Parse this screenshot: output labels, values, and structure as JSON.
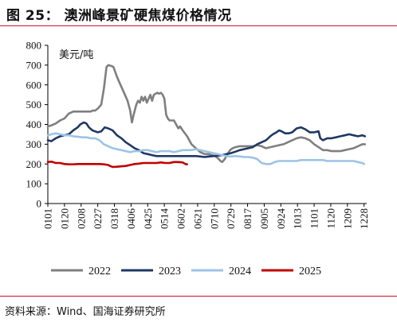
{
  "figure": {
    "title": "图 25：  澳洲峰景矿硬焦煤价格情况",
    "source": "资料来源：Wind、国海证券研究所"
  },
  "chart_data": {
    "type": "line",
    "unit_label": "美元/吨",
    "ylim": [
      0,
      800
    ],
    "yticks": [
      0,
      100,
      200,
      300,
      400,
      500,
      600,
      700,
      800
    ],
    "x_domain": [
      1,
      365
    ],
    "xticks": [
      {
        "label": "0101",
        "x": 1
      },
      {
        "label": "0120",
        "x": 20
      },
      {
        "label": "0208",
        "x": 39
      },
      {
        "label": "0227",
        "x": 58
      },
      {
        "label": "0318",
        "x": 77
      },
      {
        "label": "0406",
        "x": 96
      },
      {
        "label": "0425",
        "x": 115
      },
      {
        "label": "0514",
        "x": 134
      },
      {
        "label": "0602",
        "x": 153
      },
      {
        "label": "0621",
        "x": 172
      },
      {
        "label": "0710",
        "x": 191
      },
      {
        "label": "0729",
        "x": 210
      },
      {
        "label": "0817",
        "x": 229
      },
      {
        "label": "0905",
        "x": 248
      },
      {
        "label": "0924",
        "x": 267
      },
      {
        "label": "1013",
        "x": 286
      },
      {
        "label": "1101",
        "x": 305
      },
      {
        "label": "1120",
        "x": 324
      },
      {
        "label": "1209",
        "x": 343
      },
      {
        "label": "1228",
        "x": 362
      }
    ],
    "grid": false,
    "legend_position": "bottom",
    "series": [
      {
        "name": "2022",
        "color": "#7f7f7f",
        "points": [
          [
            1,
            390
          ],
          [
            5,
            395
          ],
          [
            10,
            405
          ],
          [
            15,
            420
          ],
          [
            20,
            430
          ],
          [
            25,
            455
          ],
          [
            30,
            465
          ],
          [
            40,
            465
          ],
          [
            50,
            465
          ],
          [
            52,
            470
          ],
          [
            55,
            470
          ],
          [
            58,
            480
          ],
          [
            62,
            500
          ],
          [
            65,
            580
          ],
          [
            68,
            690
          ],
          [
            70,
            700
          ],
          [
            74,
            695
          ],
          [
            76,
            690
          ],
          [
            80,
            640
          ],
          [
            84,
            600
          ],
          [
            88,
            560
          ],
          [
            92,
            520
          ],
          [
            95,
            470
          ],
          [
            97,
            410
          ],
          [
            99,
            450
          ],
          [
            102,
            500
          ],
          [
            104,
            520
          ],
          [
            106,
            510
          ],
          [
            108,
            540
          ],
          [
            110,
            520
          ],
          [
            112,
            540
          ],
          [
            114,
            510
          ],
          [
            116,
            530
          ],
          [
            118,
            550
          ],
          [
            120,
            520
          ],
          [
            122,
            550
          ],
          [
            124,
            555
          ],
          [
            126,
            560
          ],
          [
            128,
            555
          ],
          [
            130,
            560
          ],
          [
            132,
            550
          ],
          [
            134,
            530
          ],
          [
            136,
            450
          ],
          [
            138,
            430
          ],
          [
            140,
            420
          ],
          [
            145,
            420
          ],
          [
            150,
            380
          ],
          [
            152,
            390
          ],
          [
            155,
            370
          ],
          [
            160,
            340
          ],
          [
            165,
            300
          ],
          [
            170,
            280
          ],
          [
            175,
            260
          ],
          [
            180,
            250
          ],
          [
            185,
            250
          ],
          [
            188,
            245
          ],
          [
            192,
            240
          ],
          [
            195,
            230
          ],
          [
            198,
            215
          ],
          [
            200,
            210
          ],
          [
            203,
            225
          ],
          [
            206,
            250
          ],
          [
            209,
            270
          ],
          [
            212,
            280
          ],
          [
            215,
            285
          ],
          [
            220,
            290
          ],
          [
            225,
            290
          ],
          [
            230,
            290
          ],
          [
            235,
            290
          ],
          [
            240,
            295
          ],
          [
            245,
            290
          ],
          [
            250,
            280
          ],
          [
            255,
            285
          ],
          [
            260,
            290
          ],
          [
            265,
            295
          ],
          [
            270,
            300
          ],
          [
            275,
            310
          ],
          [
            280,
            320
          ],
          [
            285,
            330
          ],
          [
            290,
            335
          ],
          [
            295,
            330
          ],
          [
            300,
            320
          ],
          [
            305,
            300
          ],
          [
            310,
            285
          ],
          [
            315,
            270
          ],
          [
            320,
            270
          ],
          [
            325,
            265
          ],
          [
            330,
            265
          ],
          [
            335,
            265
          ],
          [
            340,
            270
          ],
          [
            345,
            275
          ],
          [
            350,
            280
          ],
          [
            355,
            290
          ],
          [
            360,
            300
          ],
          [
            363,
            300
          ]
        ]
      },
      {
        "name": "2023",
        "color": "#1f3864",
        "points": [
          [
            1,
            320
          ],
          [
            5,
            315
          ],
          [
            10,
            330
          ],
          [
            15,
            340
          ],
          [
            20,
            345
          ],
          [
            25,
            350
          ],
          [
            30,
            370
          ],
          [
            35,
            385
          ],
          [
            38,
            400
          ],
          [
            42,
            410
          ],
          [
            45,
            405
          ],
          [
            48,
            385
          ],
          [
            52,
            370
          ],
          [
            55,
            365
          ],
          [
            58,
            360
          ],
          [
            62,
            365
          ],
          [
            66,
            385
          ],
          [
            70,
            380
          ],
          [
            75,
            370
          ],
          [
            80,
            345
          ],
          [
            85,
            330
          ],
          [
            90,
            310
          ],
          [
            95,
            295
          ],
          [
            100,
            280
          ],
          [
            105,
            270
          ],
          [
            110,
            255
          ],
          [
            115,
            250
          ],
          [
            120,
            245
          ],
          [
            125,
            240
          ],
          [
            130,
            240
          ],
          [
            135,
            240
          ],
          [
            140,
            240
          ],
          [
            145,
            240
          ],
          [
            150,
            240
          ],
          [
            155,
            240
          ],
          [
            160,
            240
          ],
          [
            165,
            240
          ],
          [
            170,
            240
          ],
          [
            175,
            238
          ],
          [
            180,
            235
          ],
          [
            185,
            238
          ],
          [
            190,
            240
          ],
          [
            195,
            242
          ],
          [
            200,
            245
          ],
          [
            205,
            250
          ],
          [
            210,
            255
          ],
          [
            215,
            262
          ],
          [
            220,
            270
          ],
          [
            225,
            275
          ],
          [
            230,
            280
          ],
          [
            235,
            285
          ],
          [
            240,
            300
          ],
          [
            245,
            310
          ],
          [
            250,
            320
          ],
          [
            255,
            340
          ],
          [
            258,
            350
          ],
          [
            262,
            360
          ],
          [
            265,
            370
          ],
          [
            268,
            365
          ],
          [
            272,
            355
          ],
          [
            276,
            355
          ],
          [
            280,
            360
          ],
          [
            285,
            380
          ],
          [
            290,
            385
          ],
          [
            295,
            375
          ],
          [
            300,
            360
          ],
          [
            305,
            360
          ],
          [
            310,
            365
          ],
          [
            312,
            330
          ],
          [
            315,
            320
          ],
          [
            320,
            330
          ],
          [
            325,
            330
          ],
          [
            330,
            335
          ],
          [
            335,
            340
          ],
          [
            340,
            345
          ],
          [
            345,
            350
          ],
          [
            350,
            345
          ],
          [
            355,
            340
          ],
          [
            360,
            345
          ],
          [
            363,
            340
          ]
        ]
      },
      {
        "name": "2024",
        "color": "#9dc3e6",
        "points": [
          [
            1,
            345
          ],
          [
            5,
            350
          ],
          [
            10,
            355
          ],
          [
            15,
            350
          ],
          [
            20,
            345
          ],
          [
            25,
            345
          ],
          [
            30,
            340
          ],
          [
            35,
            338
          ],
          [
            40,
            335
          ],
          [
            45,
            335
          ],
          [
            50,
            330
          ],
          [
            55,
            330
          ],
          [
            60,
            320
          ],
          [
            65,
            300
          ],
          [
            70,
            290
          ],
          [
            75,
            280
          ],
          [
            80,
            275
          ],
          [
            85,
            270
          ],
          [
            90,
            265
          ],
          [
            95,
            260
          ],
          [
            100,
            265
          ],
          [
            105,
            265
          ],
          [
            110,
            270
          ],
          [
            115,
            270
          ],
          [
            120,
            265
          ],
          [
            125,
            260
          ],
          [
            130,
            265
          ],
          [
            135,
            265
          ],
          [
            140,
            265
          ],
          [
            145,
            260
          ],
          [
            150,
            265
          ],
          [
            155,
            270
          ],
          [
            160,
            270
          ],
          [
            165,
            270
          ],
          [
            170,
            275
          ],
          [
            175,
            270
          ],
          [
            180,
            265
          ],
          [
            185,
            260
          ],
          [
            190,
            255
          ],
          [
            195,
            250
          ],
          [
            200,
            245
          ],
          [
            205,
            240
          ],
          [
            210,
            238
          ],
          [
            215,
            240
          ],
          [
            220,
            238
          ],
          [
            225,
            235
          ],
          [
            230,
            235
          ],
          [
            235,
            232
          ],
          [
            240,
            225
          ],
          [
            245,
            205
          ],
          [
            250,
            200
          ],
          [
            255,
            200
          ],
          [
            260,
            210
          ],
          [
            265,
            215
          ],
          [
            270,
            215
          ],
          [
            275,
            215
          ],
          [
            280,
            215
          ],
          [
            285,
            215
          ],
          [
            290,
            220
          ],
          [
            295,
            220
          ],
          [
            300,
            220
          ],
          [
            305,
            220
          ],
          [
            310,
            220
          ],
          [
            315,
            220
          ],
          [
            320,
            215
          ],
          [
            325,
            215
          ],
          [
            330,
            215
          ],
          [
            335,
            215
          ],
          [
            340,
            215
          ],
          [
            345,
            215
          ],
          [
            350,
            215
          ],
          [
            355,
            210
          ],
          [
            360,
            205
          ],
          [
            362,
            200
          ]
        ]
      },
      {
        "name": "2025",
        "color": "#c00000",
        "points": [
          [
            1,
            210
          ],
          [
            5,
            212
          ],
          [
            10,
            205
          ],
          [
            15,
            205
          ],
          [
            20,
            200
          ],
          [
            25,
            198
          ],
          [
            30,
            198
          ],
          [
            35,
            200
          ],
          [
            40,
            200
          ],
          [
            45,
            200
          ],
          [
            50,
            200
          ],
          [
            55,
            200
          ],
          [
            60,
            200
          ],
          [
            65,
            198
          ],
          [
            70,
            195
          ],
          [
            72,
            190
          ],
          [
            75,
            185
          ],
          [
            80,
            186
          ],
          [
            85,
            188
          ],
          [
            90,
            190
          ],
          [
            95,
            195
          ],
          [
            100,
            200
          ],
          [
            105,
            202
          ],
          [
            110,
            205
          ],
          [
            115,
            205
          ],
          [
            120,
            205
          ],
          [
            125,
            205
          ],
          [
            130,
            208
          ],
          [
            135,
            205
          ],
          [
            140,
            205
          ],
          [
            145,
            210
          ],
          [
            150,
            210
          ],
          [
            155,
            208
          ],
          [
            158,
            200
          ],
          [
            160,
            198
          ]
        ]
      }
    ]
  }
}
